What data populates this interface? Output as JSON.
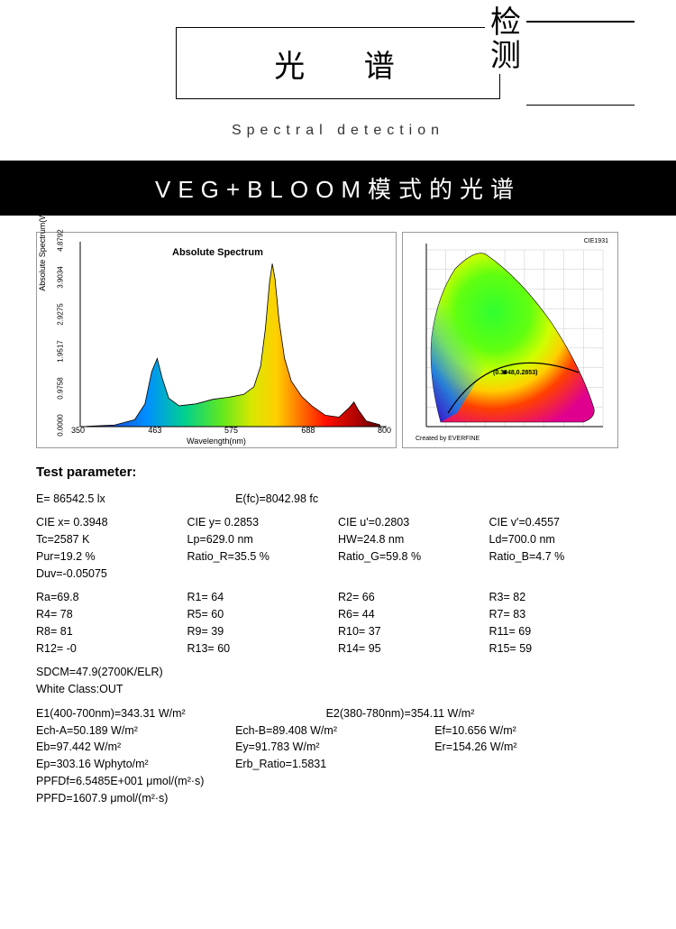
{
  "header": {
    "main": "光 谱",
    "side_top": "检",
    "side_bot": "测",
    "subtitle": "Spectral  detection"
  },
  "bar": {
    "text": "VEG+BLOOM模式的光谱"
  },
  "spectrum_chart": {
    "type": "area",
    "title": "Absolute Spectrum",
    "y_label": "Absolute Spectrum(W/m²/nm)",
    "x_label": "Wavelength(nm)",
    "xlim": [
      350,
      800
    ],
    "ylim": [
      0,
      4.8792
    ],
    "x_ticks": [
      350,
      463,
      575,
      688,
      800
    ],
    "y_ticks": [
      0.0,
      0.9758,
      1.9517,
      2.9275,
      3.9034,
      4.8792
    ],
    "background_color": "#ffffff",
    "border_color": "#999999",
    "curve": [
      [
        360,
        0.01
      ],
      [
        400,
        0.04
      ],
      [
        430,
        0.18
      ],
      [
        445,
        0.6
      ],
      [
        455,
        1.45
      ],
      [
        463,
        1.8
      ],
      [
        470,
        1.3
      ],
      [
        480,
        0.75
      ],
      [
        495,
        0.55
      ],
      [
        520,
        0.6
      ],
      [
        545,
        0.72
      ],
      [
        570,
        0.78
      ],
      [
        590,
        0.85
      ],
      [
        605,
        1.05
      ],
      [
        615,
        1.6
      ],
      [
        622,
        2.6
      ],
      [
        628,
        3.8
      ],
      [
        632,
        4.3
      ],
      [
        636,
        3.9
      ],
      [
        642,
        2.8
      ],
      [
        650,
        1.8
      ],
      [
        660,
        1.2
      ],
      [
        675,
        0.8
      ],
      [
        690,
        0.55
      ],
      [
        710,
        0.3
      ],
      [
        730,
        0.25
      ],
      [
        745,
        0.5
      ],
      [
        752,
        0.65
      ],
      [
        758,
        0.45
      ],
      [
        770,
        0.15
      ],
      [
        790,
        0.05
      ]
    ],
    "gradient": [
      {
        "stop": 0.0,
        "color": "#1b00a8"
      },
      {
        "stop": 0.1,
        "color": "#1b4fd8"
      },
      {
        "stop": 0.22,
        "color": "#0090ff"
      },
      {
        "stop": 0.34,
        "color": "#00d090"
      },
      {
        "stop": 0.46,
        "color": "#60e820"
      },
      {
        "stop": 0.56,
        "color": "#d8e800"
      },
      {
        "stop": 0.64,
        "color": "#ffd000"
      },
      {
        "stop": 0.72,
        "color": "#ff7000"
      },
      {
        "stop": 0.8,
        "color": "#ff1000"
      },
      {
        "stop": 0.92,
        "color": "#a00000"
      },
      {
        "stop": 1.0,
        "color": "#400000"
      }
    ]
  },
  "cie_chart": {
    "type": "diagram",
    "title": "CIE1931",
    "note": "Created by EVERFINE",
    "point_label": "(0.3948,0.2853)",
    "border_color": "#999999",
    "axis_range": [
      0,
      0.9
    ],
    "grid_step": 0.1,
    "grid_color": "#c8c8c8"
  },
  "params": {
    "title": "Test parameter:",
    "E": "E=  86542.5 lx",
    "Efc": "E(fc)=8042.98 fc",
    "CIEx": "CIE x= 0.3948",
    "CIEy": "CIE y= 0.2853",
    "CIEu": "CIE u'=0.2803",
    "CIEv": "CIE v'=0.4557",
    "Tc": "Tc=2587 K",
    "Lp": "Lp=629.0 nm",
    "HW": "HW=24.8 nm",
    "Ld": "Ld=700.0 nm",
    "Pur": "Pur=19.2 %",
    "RatioR": "Ratio_R=35.5 %",
    "RatioG": "Ratio_G=59.8 %",
    "RatioB": "Ratio_B=4.7 %",
    "Duv": "Duv=-0.05075",
    "Ra": "Ra=69.8",
    "R1": "R1= 64",
    "R2": "R2= 66",
    "R3": "R3= 82",
    "R4": "R4= 78",
    "R5": "R5= 60",
    "R6": "R6= 44",
    "R7": "R7= 83",
    "R8": "R8= 81",
    "R9": "R9= 39",
    "R10": "R10= 37",
    "R11": "R11= 69",
    "R12": "R12= -0",
    "R13": "R13= 60",
    "R14": "R14= 95",
    "R15": "R15= 59",
    "SDCM": "SDCM=47.9(2700K/ELR)",
    "WhiteClass": "White Class:OUT",
    "E1": "E1(400-700nm)=343.31 W/m²",
    "E2": "E2(380-780nm)=354.11 W/m²",
    "EchA": "Ech-A=50.189 W/m²",
    "EchB": "Ech-B=89.408 W/m²",
    "Ef": "Ef=10.656 W/m²",
    "Eb": "Eb=97.442 W/m²",
    "Ey": "Ey=91.783 W/m²",
    "Er": "Er=154.26 W/m²",
    "Ep": "Ep=303.16 Wphyto/m²",
    "Erb": "Erb_Ratio=1.5831",
    "PPFDf": "PPFDf=6.5485E+001 μmol/(m²·s)",
    "PPFD": "PPFD=1607.9 μmol/(m²·s)"
  }
}
